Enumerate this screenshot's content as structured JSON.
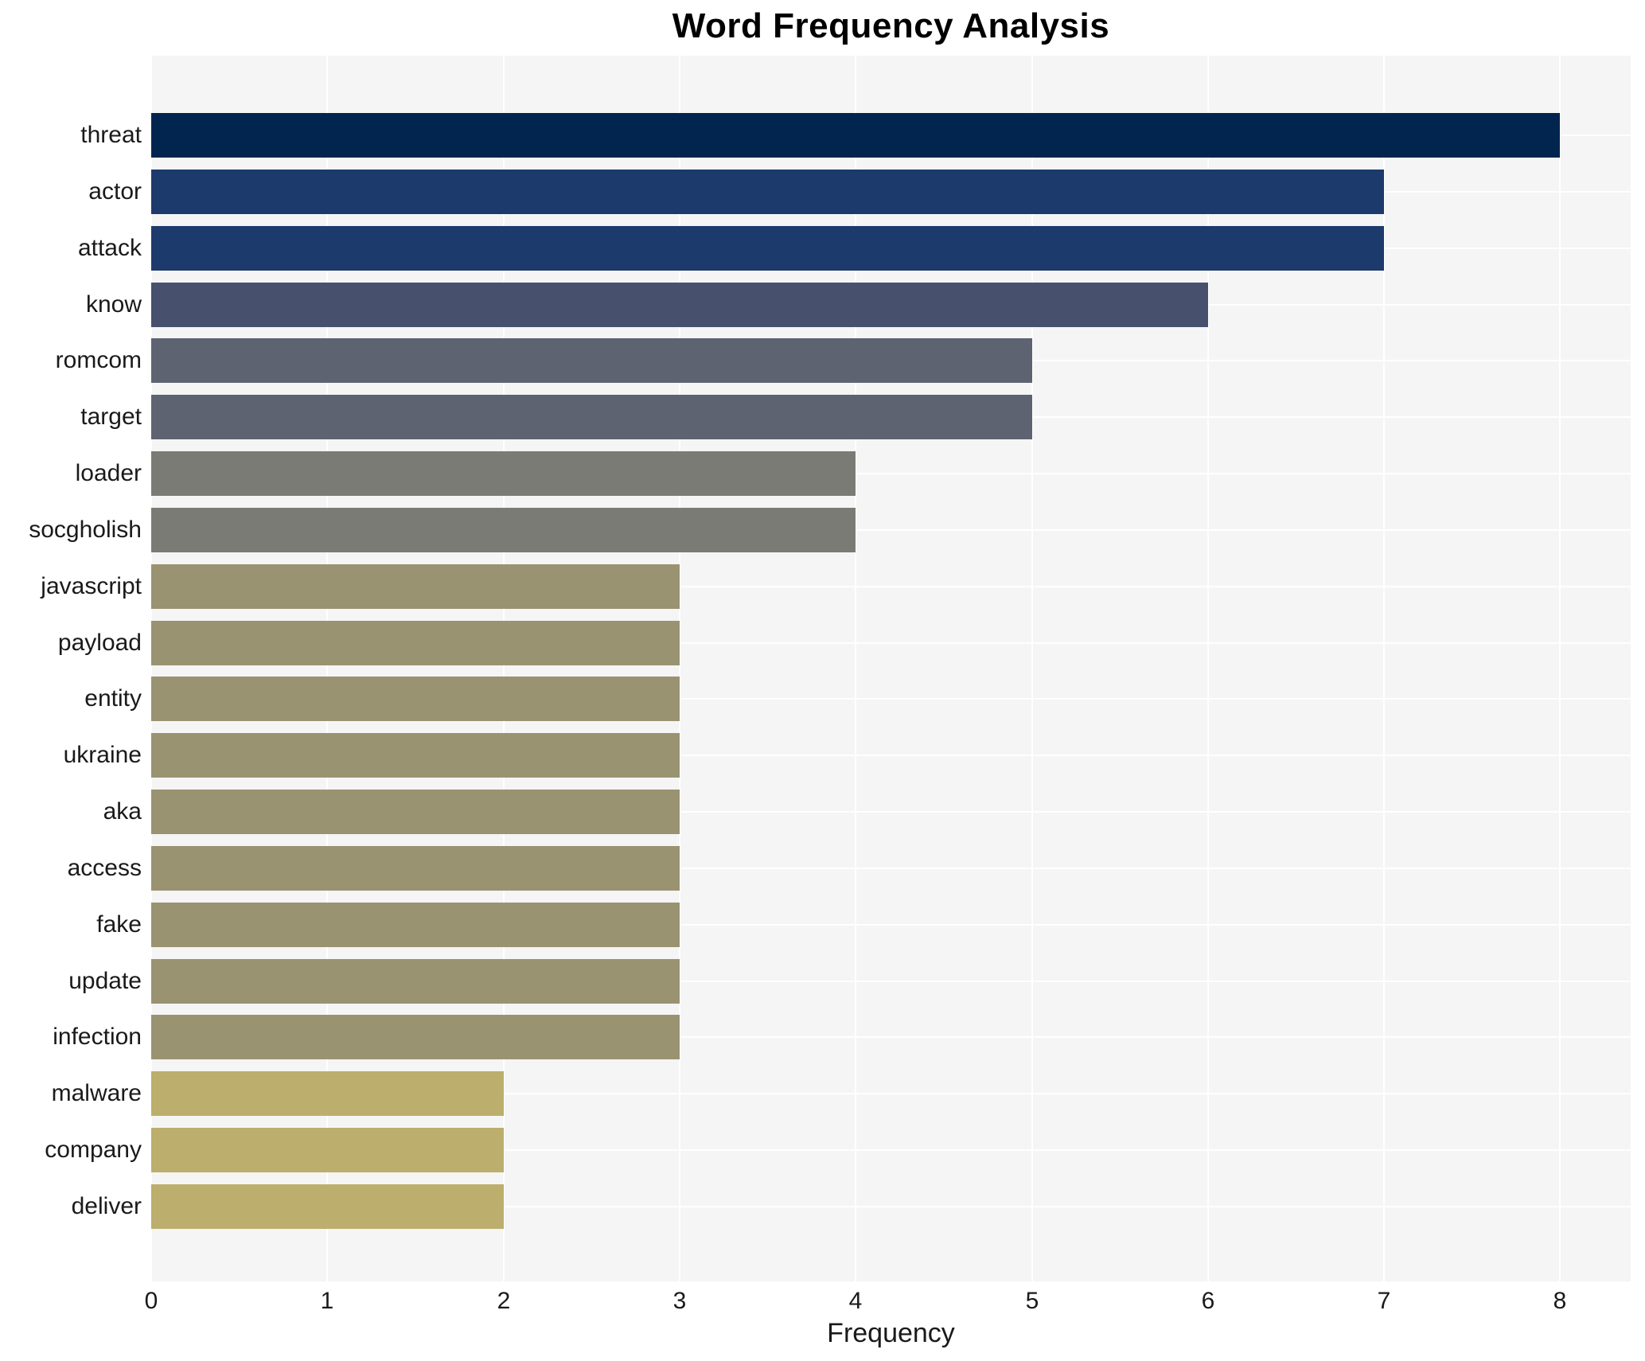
{
  "chart_data": {
    "type": "bar",
    "orientation": "horizontal",
    "title": "Word Frequency Analysis",
    "xlabel": "Frequency",
    "ylabel": "",
    "xlim": [
      0,
      8.4
    ],
    "x_ticks": [
      0,
      1,
      2,
      3,
      4,
      5,
      6,
      7,
      8
    ],
    "grid": true,
    "legend": false,
    "plot_bg_color": "#f5f5f6",
    "grid_color": "#ffffff",
    "text_color": "#1a1a1a",
    "categories": [
      "threat",
      "actor",
      "attack",
      "know",
      "romcom",
      "target",
      "loader",
      "socgholish",
      "javascript",
      "payload",
      "entity",
      "ukraine",
      "aka",
      "access",
      "fake",
      "update",
      "infection",
      "malware",
      "company",
      "deliver"
    ],
    "values": [
      8,
      7,
      7,
      6,
      5,
      5,
      4,
      4,
      3,
      3,
      3,
      3,
      3,
      3,
      3,
      3,
      3,
      2,
      2,
      2
    ],
    "bar_colors": [
      "#02254f",
      "#1c3a6c",
      "#1c3a6c",
      "#47516e",
      "#5d6370",
      "#5d6370",
      "#7b7b76",
      "#7b7b76",
      "#999371",
      "#999371",
      "#999371",
      "#999371",
      "#999371",
      "#999371",
      "#999371",
      "#999371",
      "#999371",
      "#bcae6c",
      "#bcae6c",
      "#bcae6c"
    ]
  }
}
